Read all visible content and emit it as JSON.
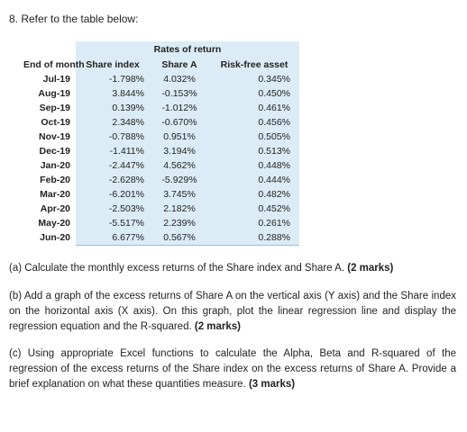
{
  "question": {
    "heading": "8. Refer to the table below:"
  },
  "table": {
    "group_header": "Rates of return",
    "columns": [
      "End of month",
      "Share index",
      "Share A",
      "Risk-free asset"
    ],
    "rows": [
      {
        "month": "Jul-19",
        "share_index": "-1.798%",
        "share_a": "4.032%",
        "risk_free": "0.345%"
      },
      {
        "month": "Aug-19",
        "share_index": "3.844%",
        "share_a": "-0.153%",
        "risk_free": "0.450%"
      },
      {
        "month": "Sep-19",
        "share_index": "0.139%",
        "share_a": "-1.012%",
        "risk_free": "0.461%"
      },
      {
        "month": "Oct-19",
        "share_index": "2.348%",
        "share_a": "-0.670%",
        "risk_free": "0.456%"
      },
      {
        "month": "Nov-19",
        "share_index": "-0.788%",
        "share_a": "0.951%",
        "risk_free": "0.505%"
      },
      {
        "month": "Dec-19",
        "share_index": "-1.411%",
        "share_a": "3.194%",
        "risk_free": "0.513%"
      },
      {
        "month": "Jan-20",
        "share_index": "-2.447%",
        "share_a": "4.562%",
        "risk_free": "0.448%"
      },
      {
        "month": "Feb-20",
        "share_index": "-2.628%",
        "share_a": "-5.929%",
        "risk_free": "0.444%"
      },
      {
        "month": "Mar-20",
        "share_index": "-6.201%",
        "share_a": "3.745%",
        "risk_free": "0.482%"
      },
      {
        "month": "Apr-20",
        "share_index": "-2.503%",
        "share_a": "2.182%",
        "risk_free": "0.452%"
      },
      {
        "month": "May-20",
        "share_index": "-5.517%",
        "share_a": "2.239%",
        "risk_free": "0.261%"
      },
      {
        "month": "Jun-20",
        "share_index": "6.677%",
        "share_a": "0.567%",
        "risk_free": "0.288%"
      }
    ]
  },
  "parts": {
    "a": {
      "text": "(a) Calculate the monthly excess returns of the Share index and Share A. ",
      "marks": "(2 marks)"
    },
    "b": {
      "text": "(b) Add a graph of the excess returns of Share A on the vertical axis (Y axis) and the Share index on the horizontal axis (X axis). On this graph, plot the linear regression line and display the regression equation and the R-squared. ",
      "marks": "(2 marks)"
    },
    "c": {
      "text": "(c) Using appropriate Excel functions to calculate the Alpha, Beta and R-squared of the regression of the excess returns of the Share index on the excess returns of Share A. Provide a brief explanation on what these quantities measure. ",
      "marks": "(3 marks)"
    }
  },
  "colors": {
    "table_fill": "#dbecf6",
    "text": "#222222"
  }
}
